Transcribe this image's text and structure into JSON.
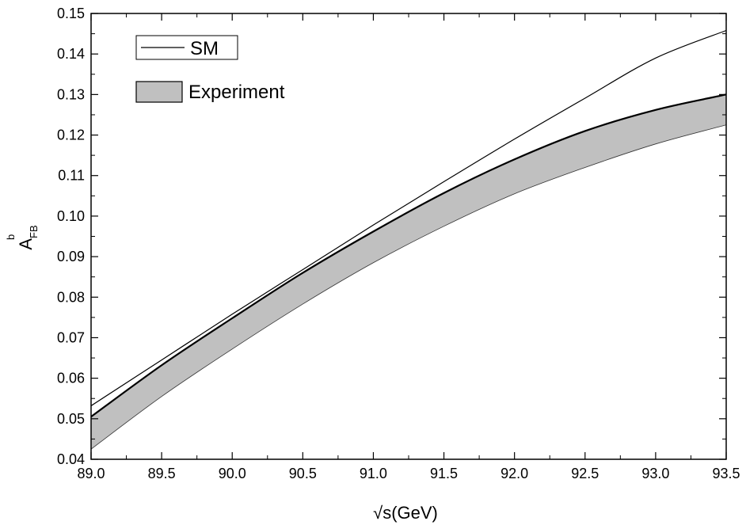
{
  "chart_data": {
    "type": "line",
    "title": "",
    "xlabel": "√s(GeV)",
    "ylabel": {
      "main": "A",
      "sup": "b",
      "sub": "FB"
    },
    "xlim": [
      89.0,
      93.5
    ],
    "ylim": [
      0.04,
      0.15
    ],
    "x_ticks": [
      "89.0",
      "89.5",
      "90.0",
      "90.5",
      "91.0",
      "91.5",
      "92.0",
      "92.5",
      "93.0",
      "93.5"
    ],
    "y_ticks": [
      "0.04",
      "0.05",
      "0.06",
      "0.07",
      "0.08",
      "0.09",
      "0.10",
      "0.11",
      "0.12",
      "0.13",
      "0.14",
      "0.15"
    ],
    "grid": false,
    "legend_position": "top-left",
    "series": [
      {
        "name": "SM",
        "kind": "line",
        "color": "#000000",
        "x": [
          89.0,
          89.5,
          90.0,
          90.5,
          91.0,
          91.5,
          92.0,
          92.5,
          93.0,
          93.5
        ],
        "y": [
          0.0532,
          0.0645,
          0.0758,
          0.0868,
          0.0978,
          0.1085,
          0.119,
          0.1291,
          0.139,
          0.1458
        ]
      },
      {
        "name": "Experiment",
        "kind": "band",
        "color": "#c0c0c0",
        "x": [
          89.0,
          89.5,
          90.0,
          90.5,
          91.0,
          91.5,
          92.0,
          92.5,
          93.0,
          93.5
        ],
        "upper": [
          0.0505,
          0.0632,
          0.0748,
          0.086,
          0.0962,
          0.1057,
          0.114,
          0.121,
          0.1262,
          0.13
        ],
        "lower": [
          0.0425,
          0.0555,
          0.0672,
          0.0783,
          0.0885,
          0.0975,
          0.1055,
          0.112,
          0.1178,
          0.1225
        ]
      }
    ]
  }
}
